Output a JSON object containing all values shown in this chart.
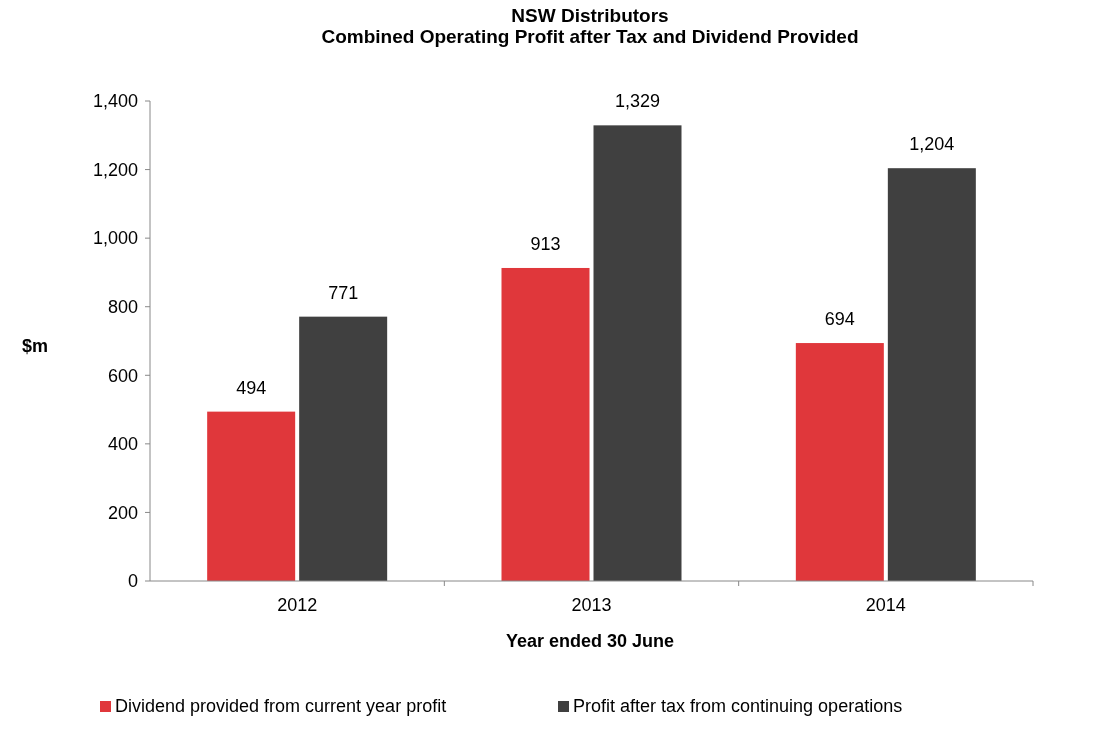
{
  "chart_data": {
    "type": "bar",
    "title": "NSW Distributors\nCombined Operating Profit after Tax and Dividend Provided",
    "xlabel": "Year ended 30 June",
    "ylabel": "$m",
    "categories": [
      "2012",
      "2013",
      "2014"
    ],
    "series": [
      {
        "name": "Dividend provided from current year profit",
        "color": "#e0373b",
        "values": [
          494,
          913,
          694
        ]
      },
      {
        "name": "Profit after tax from continuing operations",
        "color": "#404040",
        "values": [
          771,
          1329,
          1204
        ]
      }
    ],
    "ylim": [
      0,
      1400
    ],
    "yticks": [
      {
        "value": 0,
        "label": "0"
      },
      {
        "value": 200,
        "label": "200"
      },
      {
        "value": 400,
        "label": "400"
      },
      {
        "value": 600,
        "label": "600"
      },
      {
        "value": 800,
        "label": "800"
      },
      {
        "value": 1000,
        "label": "1,000"
      },
      {
        "value": 1200,
        "label": "1,200"
      },
      {
        "value": 1400,
        "label": "1,400"
      }
    ],
    "value_labels": [
      [
        "494",
        "913",
        "694"
      ],
      [
        "771",
        "1,329",
        "1,204"
      ]
    ],
    "grid": false,
    "legend": "bottom"
  }
}
